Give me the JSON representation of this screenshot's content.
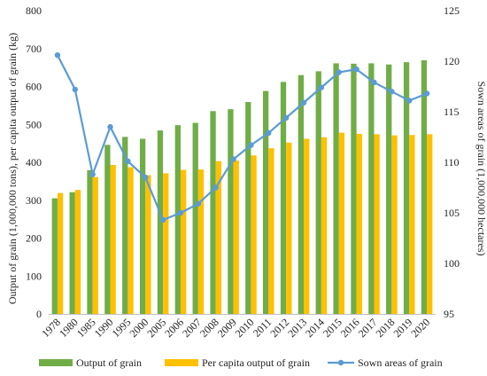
{
  "chart_data": {
    "type": "bar",
    "categories": [
      "1978",
      "1980",
      "1985",
      "1990",
      "1995",
      "2000",
      "2005",
      "2006",
      "2007",
      "2008",
      "2009",
      "2010",
      "2011",
      "2012",
      "2013",
      "2014",
      "2015",
      "2016",
      "2017",
      "2018",
      "2019",
      "2020"
    ],
    "series": [
      {
        "name": "Output of grain",
        "type": "bar",
        "axis": "left",
        "color": "#70AD47",
        "values": [
          305,
          321,
          379,
          446,
          467,
          462,
          484,
          498,
          504,
          535,
          540,
          559,
          588,
          612,
          630,
          640,
          661,
          660,
          661,
          658,
          664,
          669
        ]
      },
      {
        "name": "Per capita output of grain",
        "type": "bar",
        "axis": "left",
        "color": "#FFC000",
        "values": [
          319,
          327,
          361,
          393,
          387,
          366,
          371,
          380,
          381,
          403,
          405,
          418,
          437,
          452,
          462,
          466,
          478,
          475,
          474,
          471,
          472,
          474
        ]
      },
      {
        "name": "Sown areas of grain",
        "type": "line",
        "axis": "right",
        "color": "#5B9BD5",
        "values": [
          120.6,
          117.2,
          108.8,
          113.5,
          110.1,
          108.5,
          104.3,
          105.0,
          105.9,
          107.5,
          110.3,
          111.7,
          112.9,
          114.4,
          115.9,
          117.4,
          118.9,
          119.2,
          117.9,
          117.0,
          116.1,
          116.8
        ]
      }
    ],
    "ylabel": "Output of grain (1,000,000 tons), per capita output of grain (kg)",
    "y2label": "Sown areas of grain (1,000,000 hectares)",
    "ylim": [
      0,
      800
    ],
    "y2lim": [
      95,
      125
    ],
    "yticks": [
      "0",
      "100",
      "200",
      "300",
      "400",
      "500",
      "600",
      "700",
      "800"
    ],
    "y2ticks": [
      "95",
      "100",
      "105",
      "110",
      "115",
      "120",
      "125"
    ],
    "legend_position": "bottom",
    "grid": false
  }
}
